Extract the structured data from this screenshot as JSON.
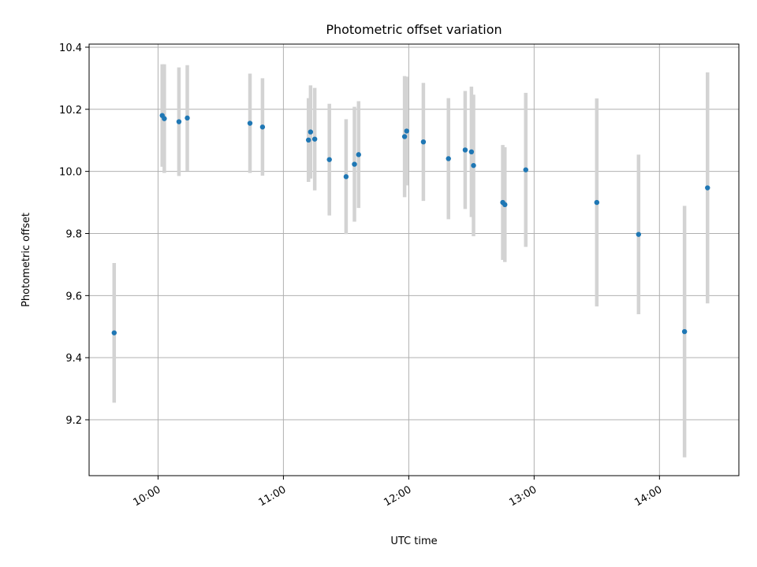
{
  "chart_data": {
    "type": "scatter",
    "title": "Photometric offset variation",
    "xlabel": "UTC time",
    "ylabel": "Photometric offset",
    "x_unit": "time",
    "xlim": [
      "09:27",
      "14:38"
    ],
    "ylim": [
      9.02,
      10.41
    ],
    "grid": true,
    "x_ticks": [
      "10:00",
      "11:00",
      "12:00",
      "13:00",
      "14:00"
    ],
    "y_ticks": [
      9.2,
      9.4,
      9.6,
      9.8,
      10.0,
      10.2,
      10.4
    ],
    "colors": {
      "point": "#1f77b4",
      "errorbar": "#d3d3d3",
      "grid": "#b0b0b0"
    },
    "points": [
      {
        "x": "09:39",
        "y": 9.48,
        "err": 0.225
      },
      {
        "x": "10:02",
        "y": 10.18,
        "err": 0.165
      },
      {
        "x": "10:03",
        "y": 10.17,
        "err": 0.175
      },
      {
        "x": "10:10",
        "y": 10.16,
        "err": 0.175
      },
      {
        "x": "10:14",
        "y": 10.172,
        "err": 0.17
      },
      {
        "x": "10:44",
        "y": 10.155,
        "err": 0.16
      },
      {
        "x": "10:50",
        "y": 10.143,
        "err": 0.157
      },
      {
        "x": "11:12",
        "y": 10.101,
        "err": 0.135
      },
      {
        "x": "11:13",
        "y": 10.127,
        "err": 0.15
      },
      {
        "x": "11:15",
        "y": 10.104,
        "err": 0.165
      },
      {
        "x": "11:22",
        "y": 10.038,
        "err": 0.18
      },
      {
        "x": "11:30",
        "y": 9.983,
        "err": 0.185
      },
      {
        "x": "11:34",
        "y": 10.023,
        "err": 0.185
      },
      {
        "x": "11:36",
        "y": 10.054,
        "err": 0.172
      },
      {
        "x": "11:58",
        "y": 10.112,
        "err": 0.195
      },
      {
        "x": "11:59",
        "y": 10.13,
        "err": 0.175
      },
      {
        "x": "12:07",
        "y": 10.095,
        "err": 0.19
      },
      {
        "x": "12:19",
        "y": 10.041,
        "err": 0.195
      },
      {
        "x": "12:27",
        "y": 10.069,
        "err": 0.19
      },
      {
        "x": "12:30",
        "y": 10.063,
        "err": 0.21
      },
      {
        "x": "12:31",
        "y": 10.019,
        "err": 0.228
      },
      {
        "x": "12:45",
        "y": 9.9,
        "err": 0.185
      },
      {
        "x": "12:46",
        "y": 9.893,
        "err": 0.185
      },
      {
        "x": "12:56",
        "y": 10.005,
        "err": 0.248
      },
      {
        "x": "13:30",
        "y": 9.9,
        "err": 0.335
      },
      {
        "x": "13:50",
        "y": 9.797,
        "err": 0.257
      },
      {
        "x": "14:12",
        "y": 9.484,
        "err": 0.405
      },
      {
        "x": "14:23",
        "y": 9.947,
        "err": 0.372
      }
    ]
  }
}
